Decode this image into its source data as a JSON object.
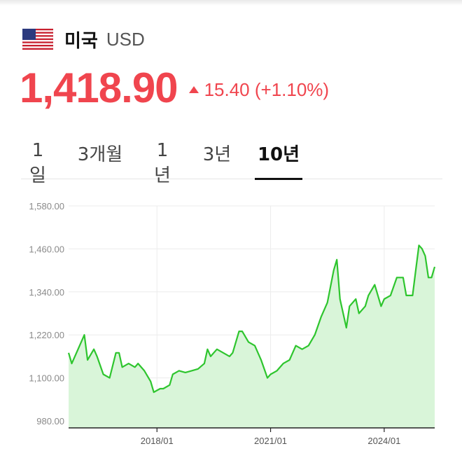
{
  "header": {
    "flag_icon": "us-flag-icon",
    "country": "미국",
    "currency": "USD"
  },
  "quote": {
    "price": "1,418.90",
    "change": "15.40 (+1.10%)",
    "direction_icon": "triangle-up-icon",
    "color": "#f0454e"
  },
  "tabs": [
    {
      "label": "1일",
      "active": false
    },
    {
      "label": "3개월",
      "active": false
    },
    {
      "label": "1년",
      "active": false
    },
    {
      "label": "3년",
      "active": false
    },
    {
      "label": "10년",
      "active": true
    }
  ],
  "chart_data": {
    "type": "area",
    "title": "",
    "xlabel": "",
    "ylabel": "",
    "ylim": [
      980,
      1580
    ],
    "y_ticks": [
      980,
      1100,
      1220,
      1340,
      1460,
      1580
    ],
    "y_tick_labels": [
      "980.00",
      "1,100.00",
      "1,220.00",
      "1,340.00",
      "1,460.00",
      "1,580.00"
    ],
    "xlim": [
      "2015-09",
      "2025-05"
    ],
    "x_ticks": [
      "2018-01",
      "2021-01",
      "2024-01"
    ],
    "x_tick_labels": [
      "2018/01",
      "2021/01",
      "2024/01"
    ],
    "grid": true,
    "line_color": "#2ec52e",
    "fill_color": "#d9f5d9",
    "series": [
      {
        "x": [
          "2015-09",
          "2015-10",
          "2015-12",
          "2016-02",
          "2016-03",
          "2016-05",
          "2016-06",
          "2016-08",
          "2016-10",
          "2016-12",
          "2017-01",
          "2017-02",
          "2017-04",
          "2017-06",
          "2017-07",
          "2017-09",
          "2017-11",
          "2017-12",
          "2018-01",
          "2018-02",
          "2018-03",
          "2018-05",
          "2018-06",
          "2018-08",
          "2018-10",
          "2018-12",
          "2019-02",
          "2019-04",
          "2019-05",
          "2019-06",
          "2019-08",
          "2019-10",
          "2019-12",
          "2020-01",
          "2020-03",
          "2020-04",
          "2020-06",
          "2020-08",
          "2020-10",
          "2020-12",
          "2021-01",
          "2021-03",
          "2021-05",
          "2021-07",
          "2021-09",
          "2021-11",
          "2022-01",
          "2022-03",
          "2022-05",
          "2022-07",
          "2022-09",
          "2022-10",
          "2022-11",
          "2023-01",
          "2023-02",
          "2023-04",
          "2023-05",
          "2023-07",
          "2023-08",
          "2023-10",
          "2023-12",
          "2024-01",
          "2024-03",
          "2024-05",
          "2024-07",
          "2024-08",
          "2024-10",
          "2024-11",
          "2024-12",
          "2025-01",
          "2025-02",
          "2025-03",
          "2025-04",
          "2025-05"
        ],
        "values": [
          1170,
          1140,
          1180,
          1220,
          1150,
          1180,
          1160,
          1110,
          1100,
          1170,
          1170,
          1130,
          1140,
          1130,
          1140,
          1120,
          1090,
          1060,
          1065,
          1070,
          1070,
          1080,
          1110,
          1120,
          1115,
          1120,
          1125,
          1140,
          1180,
          1160,
          1180,
          1170,
          1160,
          1170,
          1230,
          1230,
          1200,
          1190,
          1150,
          1100,
          1110,
          1120,
          1140,
          1150,
          1190,
          1180,
          1190,
          1220,
          1270,
          1310,
          1400,
          1430,
          1320,
          1240,
          1300,
          1320,
          1280,
          1300,
          1330,
          1360,
          1300,
          1320,
          1330,
          1380,
          1380,
          1330,
          1330,
          1400,
          1470,
          1460,
          1440,
          1380,
          1380,
          1410
        ]
      }
    ]
  }
}
